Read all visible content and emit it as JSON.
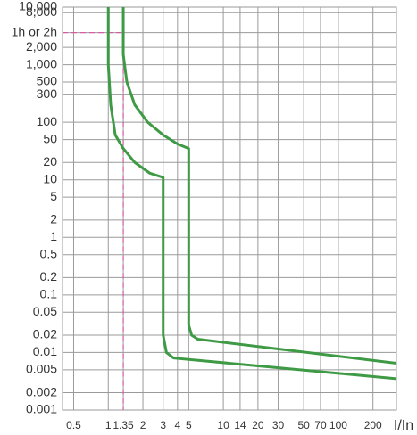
{
  "chart_data": {
    "type": "line",
    "x_label": "I/In",
    "xscale": "log",
    "yscale": "log",
    "grid": true,
    "xlim": [
      0.4,
      320
    ],
    "ylim": [
      0.001,
      10000
    ],
    "xticks": [
      0.5,
      1,
      1.35,
      2,
      3,
      4,
      5,
      10,
      14,
      20,
      30,
      50,
      70,
      100,
      200
    ],
    "yticks": [
      {
        "value": 10000,
        "label": "10,000"
      },
      {
        "value": 8000,
        "label": "8,000"
      },
      {
        "value": 3600,
        "label": "1h or 2h"
      },
      {
        "value": 2000,
        "label": "2,000"
      },
      {
        "value": 1000,
        "label": "1,000"
      },
      500,
      300,
      100,
      50,
      20,
      10,
      5,
      2,
      1,
      0.5,
      0.2,
      0.1,
      0.05,
      0.02,
      0.01,
      0.005,
      0.002,
      0.001
    ],
    "reference_color": "#d65ca3",
    "series": [
      {
        "color": "#3f9a45",
        "x": [
          1.35,
          1.35,
          1.45,
          1.7,
          2.2,
          3,
          4,
          5,
          5,
          5.3,
          6,
          320
        ],
        "values": [
          10000,
          1500,
          500,
          200,
          100,
          60,
          42,
          35,
          0.03,
          0.02,
          0.017,
          0.0065
        ]
      },
      {
        "color": "#3f9a45",
        "x": [
          1,
          1,
          1.05,
          1.15,
          1.35,
          1.7,
          2.3,
          3,
          3,
          3.2,
          3.7,
          320
        ],
        "values": [
          10000,
          1000,
          200,
          60,
          35,
          20,
          13,
          11,
          0.02,
          0.01,
          0.008,
          0.0035
        ]
      }
    ]
  }
}
